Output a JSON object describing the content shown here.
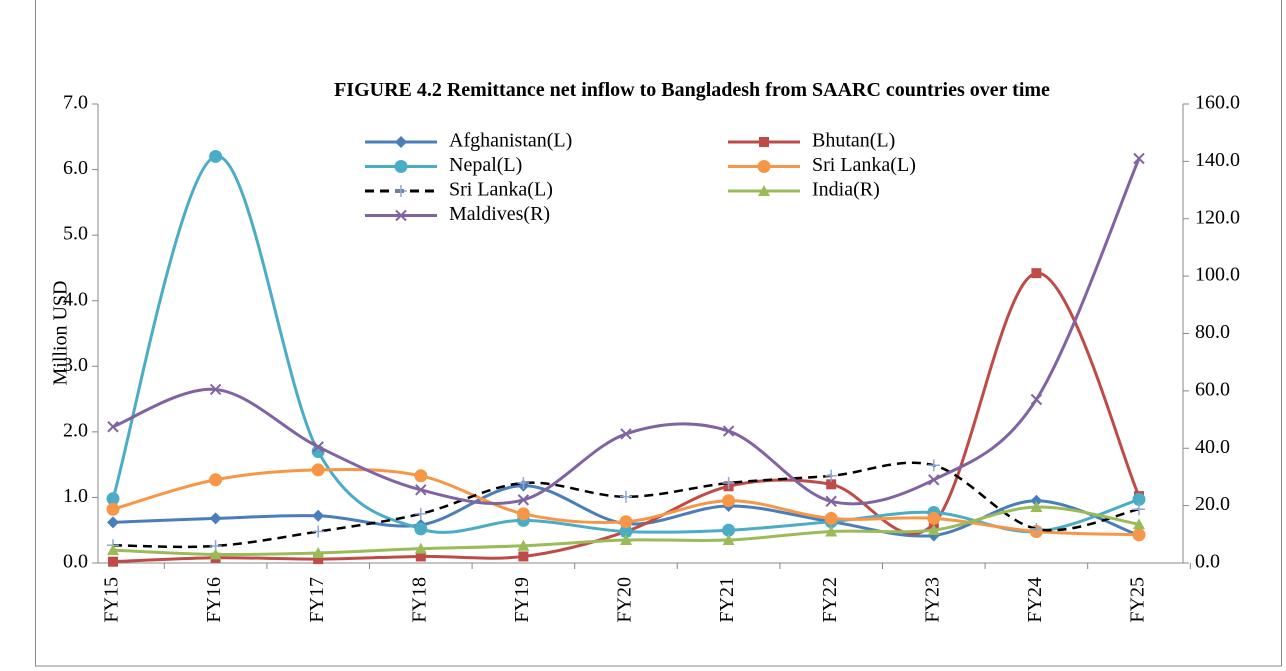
{
  "chart_data": {
    "type": "line",
    "title": "FIGURE 4.2 Remittance net inflow to Bangladesh from SAARC countries over time",
    "ylabel": "Million USD",
    "categories": [
      "FY15",
      "FY16",
      "FY17",
      "FY18",
      "FY19",
      "FY20",
      "FY21",
      "FY22",
      "FY23",
      "FY24",
      "FY25"
    ],
    "series": [
      {
        "name": "Afghanistan(L)",
        "color": "#4a7ebb",
        "marker": "diamond",
        "axis": "y",
        "values": [
          0.62,
          0.68,
          0.72,
          0.58,
          1.18,
          0.6,
          0.87,
          0.63,
          0.42,
          0.95,
          0.42
        ]
      },
      {
        "name": "Bhutan(L)",
        "color": "#be4b48",
        "marker": "square",
        "axis": "y",
        "values": [
          0.02,
          0.08,
          0.06,
          0.1,
          0.1,
          0.48,
          1.17,
          1.2,
          0.6,
          4.42,
          1.02
        ]
      },
      {
        "name": "Nepal(L)",
        "color": "#4bacc6",
        "marker": "circle",
        "axis": "y",
        "values": [
          0.98,
          6.2,
          1.7,
          0.52,
          0.65,
          0.48,
          0.5,
          0.63,
          0.77,
          0.48,
          0.97
        ]
      },
      {
        "name": "Sri Lanka(L)",
        "color": "#f79646",
        "marker": "circle",
        "axis": "y",
        "values": [
          0.82,
          1.27,
          1.42,
          1.33,
          0.75,
          0.63,
          0.95,
          0.68,
          0.68,
          0.48,
          0.43
        ]
      },
      {
        "name": "Sri Lanka(L)",
        "color": "#000000",
        "marker": "plus",
        "dashed": true,
        "axis": "y",
        "values": [
          0.27,
          0.26,
          0.48,
          0.75,
          1.22,
          1.01,
          1.22,
          1.33,
          1.49,
          0.52,
          0.82
        ]
      },
      {
        "name": "India(R)",
        "color": "#9bbb59",
        "marker": "triangle",
        "axis": "y2",
        "values": [
          4.5,
          3,
          3.5,
          5,
          6,
          8,
          8,
          11,
          11.5,
          19.5,
          13.5
        ]
      },
      {
        "name": "Maldives(R)",
        "color": "#8064a2",
        "marker": "x",
        "axis": "y2",
        "values": [
          47.5,
          60.5,
          40.5,
          25.5,
          22,
          45,
          46,
          21.5,
          29,
          57,
          141
        ]
      }
    ],
    "ylim": [
      0,
      7
    ],
    "yticks": [
      {
        "value": 0,
        "label": "0.0"
      },
      {
        "value": 1,
        "label": "1.0"
      },
      {
        "value": 2,
        "label": "2.0"
      },
      {
        "value": 3,
        "label": "3.0"
      },
      {
        "value": 4,
        "label": "4.0"
      },
      {
        "value": 5,
        "label": "5.0"
      },
      {
        "value": 6,
        "label": "6.0"
      },
      {
        "value": 7,
        "label": "7.0"
      }
    ],
    "y2lim": [
      0,
      160
    ],
    "y2ticks": [
      {
        "value": 0,
        "label": "0.0"
      },
      {
        "value": 20,
        "label": "20.0"
      },
      {
        "value": 40,
        "label": "40.0"
      },
      {
        "value": 60,
        "label": "60.0"
      },
      {
        "value": 80,
        "label": "80.0"
      },
      {
        "value": 100,
        "label": "100.0"
      },
      {
        "value": 120,
        "label": "120.0"
      },
      {
        "value": 140,
        "label": "140.0"
      },
      {
        "value": 160,
        "label": "160.0"
      }
    ],
    "legend": "top",
    "smooth": true
  }
}
